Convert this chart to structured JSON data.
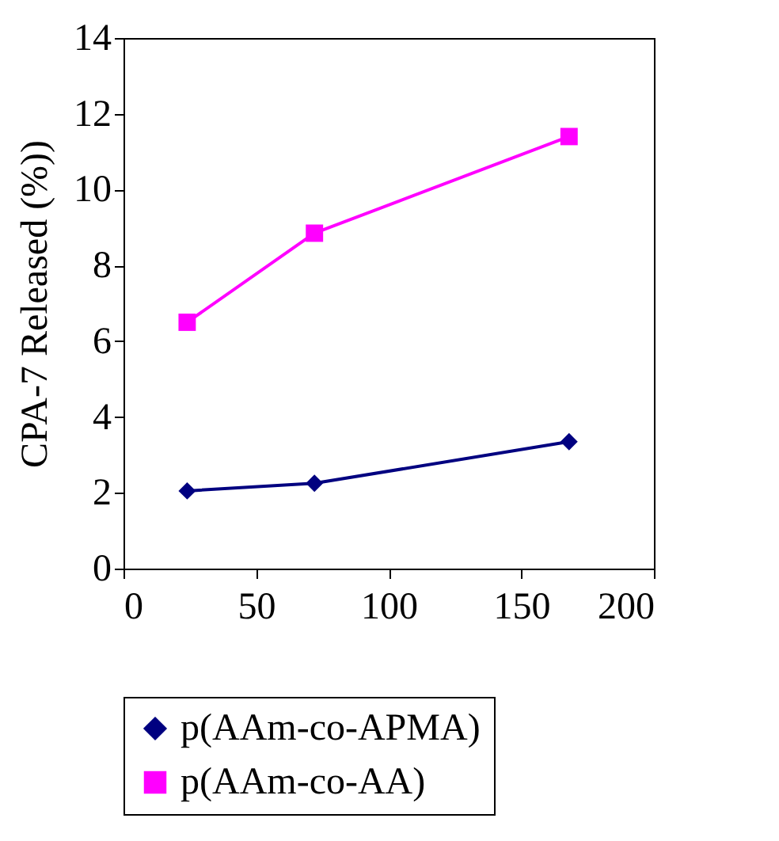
{
  "chart_data": {
    "type": "line",
    "ylabel": "CPA-7 Released (%))",
    "x": [
      24,
      72,
      168
    ],
    "series": [
      {
        "name": "p(AAm-co-APMA)",
        "color": "#000080",
        "marker": "diamond",
        "values": [
          2.05,
          2.25,
          3.35
        ]
      },
      {
        "name": "p(AAm-co-AA)",
        "color": "#ff00ff",
        "marker": "square",
        "values": [
          6.5,
          8.85,
          11.4
        ]
      }
    ],
    "xlim": [
      0,
      200
    ],
    "xticks": [
      0,
      50,
      100,
      150,
      200
    ],
    "ylim": [
      0,
      14
    ],
    "yticks": [
      0,
      2,
      4,
      6,
      8,
      10,
      12,
      14
    ],
    "grid": false,
    "legend": "bottom"
  }
}
